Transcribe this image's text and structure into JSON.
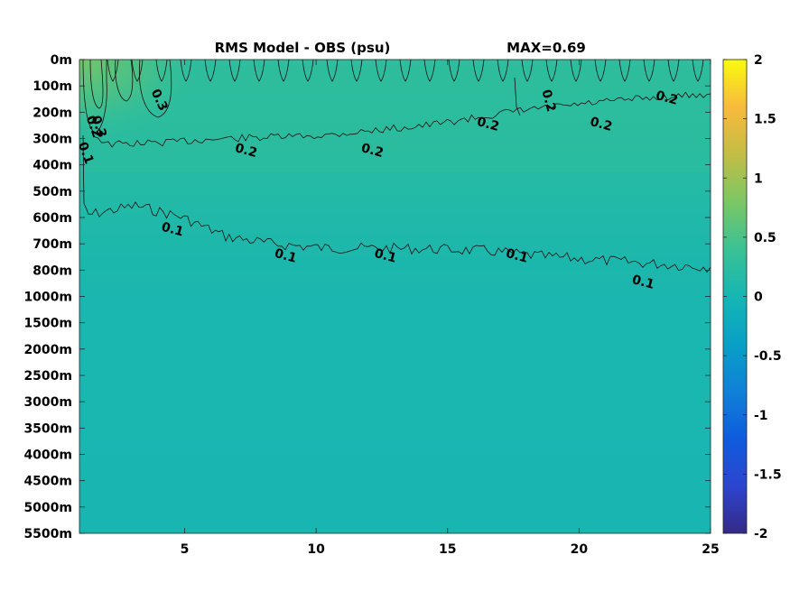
{
  "chart_data": {
    "type": "heatmap",
    "title": "RMS Model - OBS (psu)",
    "max_label": "MAX=0.69",
    "x_ticks": [
      5,
      10,
      15,
      20,
      25
    ],
    "x_range": [
      1,
      25
    ],
    "y_ticks": [
      "0m",
      "100m",
      "200m",
      "300m",
      "400m",
      "500m",
      "600m",
      "700m",
      "800m",
      "1000m",
      "1500m",
      "2000m",
      "2500m",
      "3000m",
      "3500m",
      "4000m",
      "4500m",
      "5000m",
      "5500m"
    ],
    "colorbar": {
      "range": [
        -2,
        2
      ],
      "ticks": [
        "2",
        "1.5",
        "1",
        "0.5",
        "0",
        "-0.5",
        "-1",
        "-1.5",
        "-2"
      ],
      "colormap": "parula"
    },
    "contour_levels": [
      0.1,
      0.2,
      0.3
    ],
    "contour_labels": [
      {
        "text": "0.1",
        "x": 4.5,
        "y": "600m"
      },
      {
        "text": "0.1",
        "x": 8.8,
        "y": "700m"
      },
      {
        "text": "0.1",
        "x": 12.6,
        "y": "700m"
      },
      {
        "text": "0.1",
        "x": 17.6,
        "y": "700m"
      },
      {
        "text": "0.1",
        "x": 22.4,
        "y": "800m"
      },
      {
        "text": "0.2",
        "x": 7.3,
        "y": "300m"
      },
      {
        "text": "0.2",
        "x": 12.1,
        "y": "300m"
      },
      {
        "text": "0.2",
        "x": 16.5,
        "y": "200m"
      },
      {
        "text": "0.2",
        "x": 20.8,
        "y": "200m"
      },
      {
        "text": "0.2",
        "x": 23.3,
        "y": "100m"
      },
      {
        "text": "0.2",
        "x": 18.7,
        "y": "100m"
      },
      {
        "text": "0.3",
        "x": 3.9,
        "y": "100m"
      },
      {
        "text": "0.3",
        "x": 1.6,
        "y": "200m"
      },
      {
        "text": "0.2",
        "x": 1.4,
        "y": "200m"
      },
      {
        "text": "0.1",
        "x": 1.1,
        "y": "300m"
      }
    ],
    "colors": {
      "background": "#1ab6b0",
      "upper": "#26bca3",
      "upper_band": "#2cbd9e",
      "surface_max": "#76c768"
    }
  }
}
